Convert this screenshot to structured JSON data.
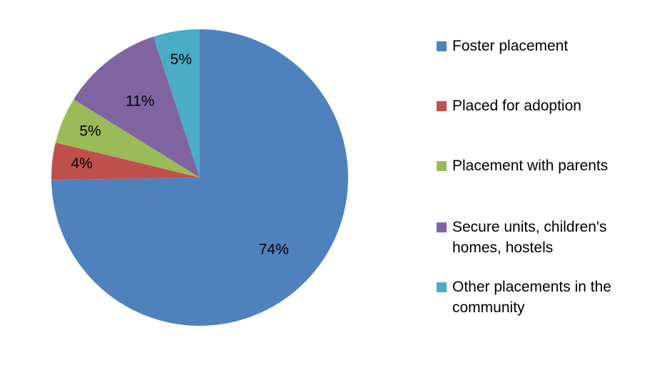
{
  "chart_data": {
    "type": "pie",
    "title": "",
    "slices": [
      {
        "label": "Foster placement",
        "value": 74,
        "display": "74%",
        "color": "#4F81BD"
      },
      {
        "label": "Placed for adoption",
        "value": 4,
        "display": "4%",
        "color": "#C0504D"
      },
      {
        "label": "Placement with parents",
        "value": 5,
        "display": "5%",
        "color": "#9BBB59"
      },
      {
        "label": "Secure units, children's homes, hostels",
        "value": 11,
        "display": "11%",
        "color": "#8064A2"
      },
      {
        "label": "Other placements in the community",
        "value": 5,
        "display": "5%",
        "color": "#4BACC6"
      }
    ],
    "legend_position": "right"
  }
}
